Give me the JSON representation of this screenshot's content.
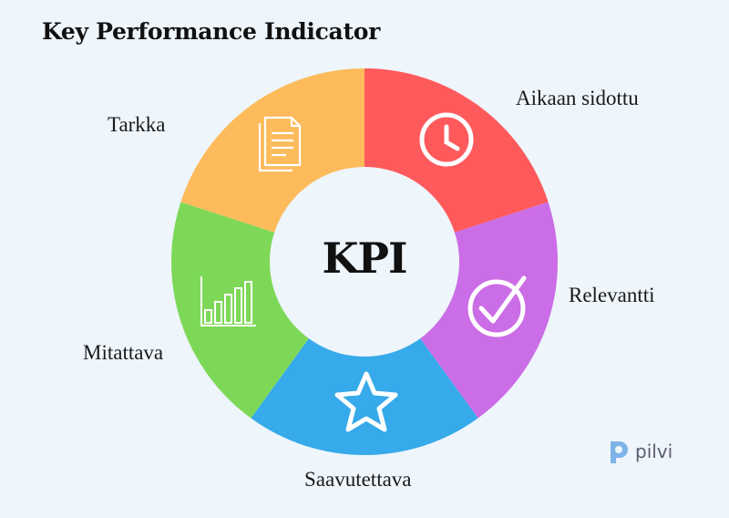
{
  "title": "Key Performance Indicator",
  "center": "KPI",
  "segments": [
    {
      "label": "Aikaan sidottu",
      "color": "#fe5a5c",
      "icon": "clock-icon"
    },
    {
      "label": "Relevantti",
      "color": "#cb6de6",
      "icon": "checkmark-icon"
    },
    {
      "label": "Saavutettava",
      "color": "#36aaea",
      "icon": "star-icon"
    },
    {
      "label": "Mitattava",
      "color": "#7ed858",
      "icon": "bar-chart-icon"
    },
    {
      "label": "Tarkka",
      "color": "#fdbb5c",
      "icon": "document-icon"
    }
  ],
  "logo": {
    "text": "pilvi",
    "color": "#7fb3e8"
  }
}
